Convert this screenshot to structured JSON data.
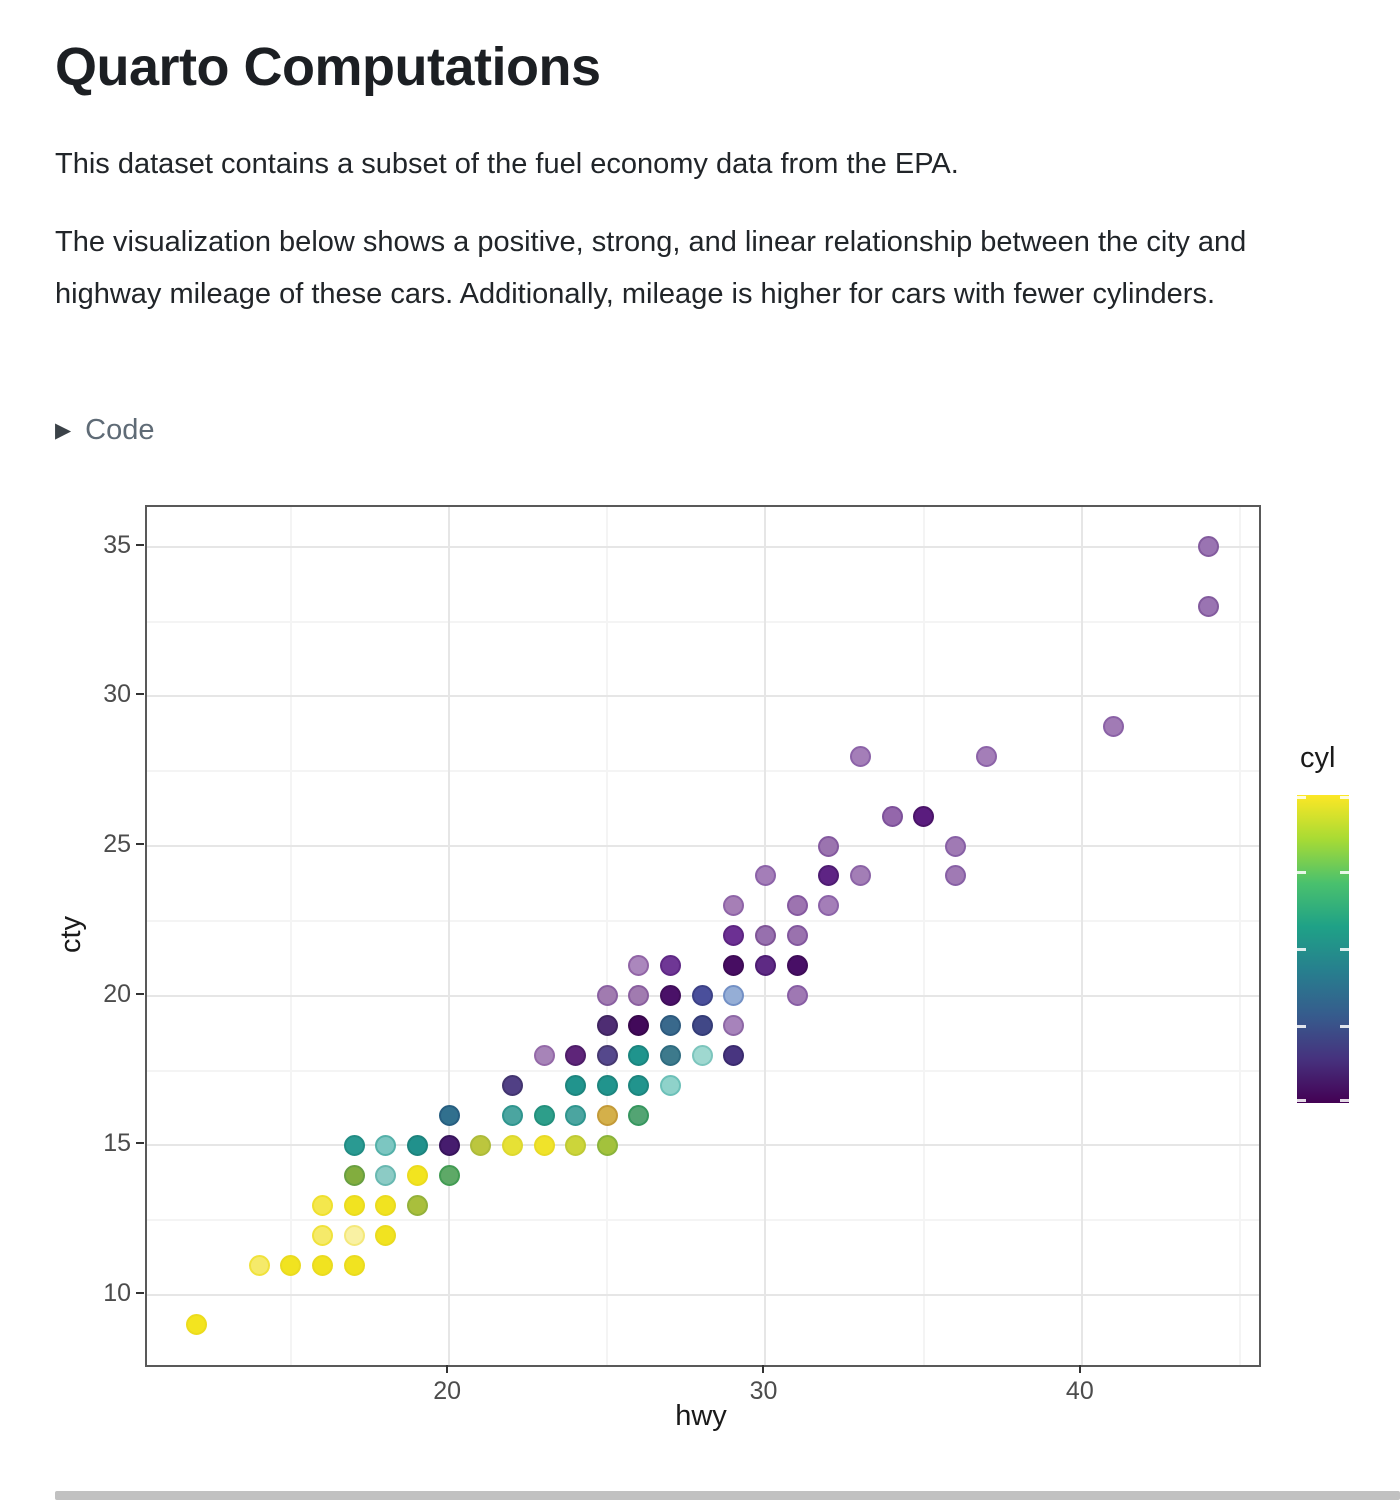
{
  "page": {
    "title": "Quarto Computations",
    "paragraph_1": "This dataset contains a subset of the fuel economy data from the EPA.",
    "paragraph_2": "The visualization below shows a positive, strong, and linear relationship between the city and highway mileage of these cars. Additionally, mileage is higher for cars with fewer cylinders.",
    "code_toggle": {
      "icon": "▶",
      "label": "Code"
    }
  },
  "chart_data": {
    "type": "scatter",
    "title": "",
    "xlabel": "hwy",
    "ylabel": "cty",
    "xlim": [
      10.45,
      45.6
    ],
    "ylim": [
      7.66,
      36.33
    ],
    "x_ticks": [
      20,
      30,
      40
    ],
    "x_minor_ticks": [
      15,
      25,
      35,
      45
    ],
    "y_ticks": [
      10,
      15,
      20,
      25,
      30,
      35
    ],
    "y_minor_ticks": [
      12.5,
      17.5,
      22.5,
      27.5,
      32.5
    ],
    "grid": true,
    "legend": {
      "title": "cyl",
      "position": "right",
      "scale": "viridis-continuous",
      "limits": [
        4,
        8
      ],
      "top_value": 8,
      "tick_values": [
        8,
        7,
        6,
        5,
        4
      ],
      "gradient_top_to_bottom": [
        "#fde725",
        "#a8db34",
        "#4ac16d",
        "#1fa187",
        "#277f8e",
        "#365c8d",
        "#46327e",
        "#440154"
      ]
    },
    "points_format": [
      "hwy",
      "cty",
      "fill_color",
      "ring_color"
    ],
    "points": [
      [
        44,
        35,
        "#9a74b2",
        "#835b9e"
      ],
      [
        44,
        33,
        "#9a74b2",
        "#835b9e"
      ],
      [
        41,
        29,
        "#a17bb5",
        "#8a61a6"
      ],
      [
        33,
        28,
        "#a47eb8",
        "#8c63a8"
      ],
      [
        37,
        28,
        "#a47eb8",
        "#8c63a8"
      ],
      [
        34,
        26,
        "#9467ab",
        "#7d519a"
      ],
      [
        35,
        26,
        "#5a1c7e",
        "#4a1468"
      ],
      [
        32,
        25,
        "#9b74af",
        "#84599f"
      ],
      [
        36,
        25,
        "#a07ab4",
        "#8760a5"
      ],
      [
        30,
        24,
        "#a47eb8",
        "#8c63a8"
      ],
      [
        32,
        24,
        "#5e2484",
        "#4e1c72"
      ],
      [
        33,
        24,
        "#a37eb6",
        "#8b63a6"
      ],
      [
        36,
        24,
        "#a07ab4",
        "#8760a5"
      ],
      [
        29,
        23,
        "#a67fb6",
        "#8e64a7"
      ],
      [
        31,
        23,
        "#9d74b0",
        "#8559a0"
      ],
      [
        32,
        23,
        "#a47eb8",
        "#8c63a8"
      ],
      [
        29,
        22,
        "#6c3093",
        "#5c2481"
      ],
      [
        30,
        22,
        "#9770ae",
        "#7f5597"
      ],
      [
        31,
        22,
        "#9a72ae",
        "#82579e"
      ],
      [
        26,
        21,
        "#ab87bd",
        "#9165a6"
      ],
      [
        27,
        21,
        "#6f3795",
        "#5f2885"
      ],
      [
        29,
        21,
        "#470d62",
        "#3d0a55"
      ],
      [
        30,
        21,
        "#5e2a84",
        "#4d1c72"
      ],
      [
        31,
        21,
        "#480f66",
        "#3e0c58"
      ],
      [
        25,
        20,
        "#a17bb0",
        "#8960a1"
      ],
      [
        26,
        20,
        "#a17bb0",
        "#8a5f9f"
      ],
      [
        27,
        20,
        "#4a1168",
        "#400e5a"
      ],
      [
        28,
        20,
        "#4a4f9b",
        "#3c4186"
      ],
      [
        29,
        20,
        "#95aed6",
        "#7390c5"
      ],
      [
        31,
        20,
        "#9f78b3",
        "#875da4"
      ],
      [
        25,
        19,
        "#4e2d73",
        "#3f2460"
      ],
      [
        26,
        19,
        "#42095a",
        "#38074c"
      ],
      [
        27,
        19,
        "#39698c",
        "#2d5a7e"
      ],
      [
        28,
        19,
        "#414887",
        "#343c77"
      ],
      [
        29,
        19,
        "#a783bb",
        "#8d67a5"
      ],
      [
        23,
        18,
        "#a784b8",
        "#9469a8"
      ],
      [
        24,
        18,
        "#5e2579",
        "#4e1d69"
      ],
      [
        25,
        18,
        "#55488c",
        "#463871"
      ],
      [
        26,
        18,
        "#1f948d",
        "#1b857f"
      ],
      [
        27,
        18,
        "#3d7a8c",
        "#2f6c80"
      ],
      [
        28,
        18,
        "#9fd8d0",
        "#7cc5bd"
      ],
      [
        29,
        18,
        "#483580",
        "#3a2a6e"
      ],
      [
        22,
        17,
        "#514085",
        "#42346f"
      ],
      [
        24,
        17,
        "#21948d",
        "#1d857e"
      ],
      [
        25,
        17,
        "#21948d",
        "#1d857e"
      ],
      [
        26,
        17,
        "#21948d",
        "#1d857e"
      ],
      [
        27,
        17,
        "#8fd2ca",
        "#6cc0b8"
      ],
      [
        20,
        16,
        "#31708e",
        "#275e80"
      ],
      [
        22,
        16,
        "#4ba5a0",
        "#2f958e"
      ],
      [
        23,
        16,
        "#2d9e8a",
        "#23907d"
      ],
      [
        24,
        16,
        "#4ba5a0",
        "#2f958e"
      ],
      [
        25,
        16,
        "#d4b04a",
        "#c39a38"
      ],
      [
        26,
        16,
        "#53a473",
        "#37965f"
      ],
      [
        17,
        15,
        "#2a9a92",
        "#218c84"
      ],
      [
        18,
        15,
        "#7cc6c1",
        "#54b0a9"
      ],
      [
        19,
        15,
        "#21918c",
        "#1d837d"
      ],
      [
        20,
        15,
        "#461c6e",
        "#38145c"
      ],
      [
        21,
        15,
        "#bcc63e",
        "#adbb3a"
      ],
      [
        22,
        15,
        "#e6e135",
        "#ddd830"
      ],
      [
        23,
        15,
        "#f0e32a",
        "#e8da26"
      ],
      [
        24,
        15,
        "#ccd53a",
        "#bfca36"
      ],
      [
        25,
        15,
        "#a3c23c",
        "#8ab33a"
      ],
      [
        17,
        14,
        "#82ad3e",
        "#699f40"
      ],
      [
        18,
        14,
        "#8ccbc5",
        "#68b8b1"
      ],
      [
        19,
        14,
        "#f2e41f",
        "#ebdb1e"
      ],
      [
        20,
        14,
        "#5ea967",
        "#429b53"
      ],
      [
        16,
        13,
        "#f4e74d",
        "#efe02e"
      ],
      [
        17,
        13,
        "#f1e320",
        "#eadb1f"
      ],
      [
        18,
        13,
        "#f1e320",
        "#eadb1f"
      ],
      [
        19,
        13,
        "#a9bf3c",
        "#93b13a"
      ],
      [
        16,
        12,
        "#f5ea6a",
        "#f0e23c"
      ],
      [
        17,
        12,
        "#f9f1a3",
        "#f4e87a"
      ],
      [
        18,
        12,
        "#f1e320",
        "#eadb1f"
      ],
      [
        14,
        11,
        "#f5ea6a",
        "#f0e23c"
      ],
      [
        15,
        11,
        "#f1e320",
        "#eadb1f"
      ],
      [
        16,
        11,
        "#f1e320",
        "#eadb1f"
      ],
      [
        17,
        11,
        "#f1e320",
        "#eadb1f"
      ],
      [
        12,
        9,
        "#f3e41f",
        "#ecdc1d"
      ]
    ]
  }
}
